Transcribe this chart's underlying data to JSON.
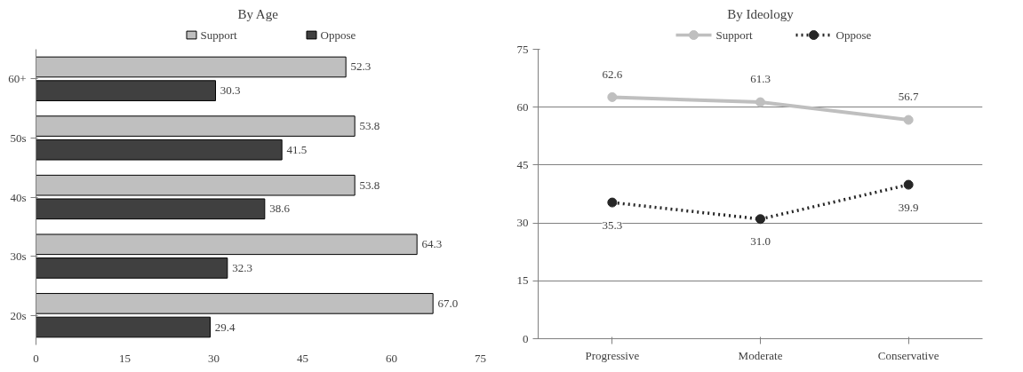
{
  "chart_data": [
    {
      "type": "bar",
      "title": "By Age",
      "orientation": "horizontal",
      "categories": [
        "60+",
        "50s",
        "40s",
        "30s",
        "20s"
      ],
      "series": [
        {
          "name": "Support",
          "color": "#bfbfbf",
          "values": [
            52.3,
            53.8,
            53.8,
            64.3,
            67.0
          ],
          "value_labels": [
            "52.3",
            "53.8",
            "53.8",
            "64.3",
            "67.0"
          ]
        },
        {
          "name": "Oppose",
          "color": "#404040",
          "values": [
            30.3,
            41.5,
            38.6,
            32.3,
            29.4
          ],
          "value_labels": [
            "30.3",
            "41.5",
            "38.6",
            "32.3",
            "29.4"
          ]
        }
      ],
      "xlim": [
        0,
        75
      ],
      "xticks": [
        0,
        15,
        30,
        45,
        60,
        75
      ],
      "grid": false,
      "legend": "top"
    },
    {
      "type": "line",
      "title": "By Ideology",
      "categories": [
        "Progressive",
        "Moderate",
        "Conservative"
      ],
      "series": [
        {
          "name": "Support",
          "color": "#bfbfbf",
          "values": [
            62.6,
            61.3,
            56.7
          ],
          "value_labels": [
            "62.6",
            "61.3",
            "56.7"
          ],
          "line_style": "solid"
        },
        {
          "name": "Oppose",
          "color": "#262626",
          "values": [
            35.3,
            31.0,
            39.9
          ],
          "value_labels": [
            "35.3",
            "31.0",
            "39.9"
          ],
          "line_style": "dotted"
        }
      ],
      "ylim": [
        0,
        75
      ],
      "yticks": [
        0,
        15,
        30,
        45,
        60,
        75
      ],
      "grid": "y",
      "legend": "top",
      "marker": "circle"
    }
  ]
}
